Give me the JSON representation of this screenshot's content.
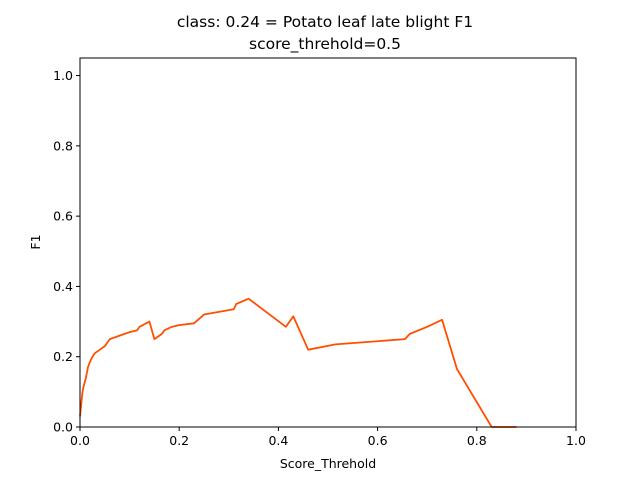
{
  "chart_data": {
    "type": "line",
    "title": "class: 0.24 = Potato leaf late blight F1",
    "subtitle": "score_threhold=0.5",
    "xlabel": "Score_Threhold",
    "ylabel": "F1",
    "xlim": [
      0.0,
      1.0
    ],
    "ylim": [
      0.0,
      1.05
    ],
    "xticks": [
      "0.0",
      "0.2",
      "0.4",
      "0.6",
      "0.8",
      "1.0"
    ],
    "yticks": [
      "0.0",
      "0.2",
      "0.4",
      "0.6",
      "0.8",
      "1.0"
    ],
    "grid": false,
    "line_color": "#ff4f00",
    "series": [
      {
        "x": [
          0.0,
          0.005,
          0.008,
          0.012,
          0.016,
          0.02,
          0.025,
          0.03,
          0.04,
          0.045,
          0.05,
          0.055,
          0.06,
          0.07,
          0.08,
          0.09,
          0.1,
          0.115,
          0.12,
          0.14,
          0.15,
          0.155,
          0.16,
          0.165,
          0.17,
          0.185,
          0.2,
          0.23,
          0.25,
          0.31,
          0.315,
          0.34,
          0.415,
          0.43,
          0.46,
          0.515,
          0.655,
          0.665,
          0.7,
          0.73,
          0.76,
          0.83,
          0.88
        ],
        "y": [
          0.03,
          0.1,
          0.12,
          0.14,
          0.17,
          0.185,
          0.2,
          0.21,
          0.22,
          0.225,
          0.23,
          0.24,
          0.25,
          0.255,
          0.26,
          0.265,
          0.27,
          0.275,
          0.285,
          0.3,
          0.25,
          0.255,
          0.26,
          0.265,
          0.275,
          0.285,
          0.29,
          0.295,
          0.32,
          0.335,
          0.35,
          0.365,
          0.285,
          0.315,
          0.22,
          0.235,
          0.25,
          0.265,
          0.285,
          0.305,
          0.165,
          0.0,
          0.0
        ]
      }
    ]
  }
}
